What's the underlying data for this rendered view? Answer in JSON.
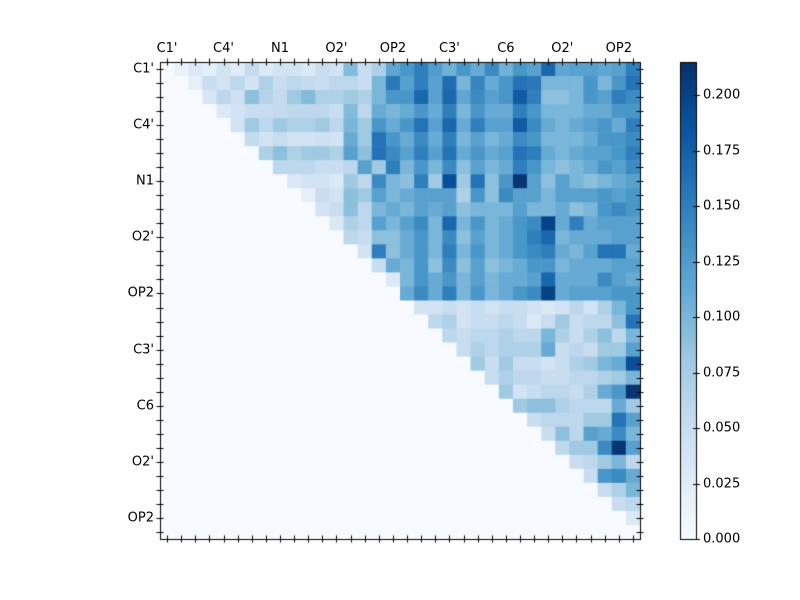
{
  "figure": {
    "background": "#ffffff",
    "title": ""
  },
  "chart_data": {
    "type": "heatmap",
    "description": "Upper-triangular heatmap, Blues colormap; identical tick labels on x (top) and y (left) axes, label every 4th cell",
    "n": 34,
    "x_tick_labels": [
      "C1'",
      "C4'",
      "N1",
      "O2'",
      "OP2",
      "C3'",
      "C6",
      "O2'",
      "OP2"
    ],
    "y_tick_labels": [
      "C1'",
      "C4'",
      "N1",
      "O2'",
      "OP2",
      "C3'",
      "C6",
      "O2'",
      "OP2"
    ],
    "labeled_cells": [
      0,
      4,
      8,
      12,
      16,
      20,
      24,
      28,
      32
    ],
    "vmin": 0.0,
    "vmax": 0.215,
    "colormap": "Blues",
    "colormap_stops": [
      [
        0.0,
        "#f7fbff"
      ],
      [
        0.125,
        "#deebf7"
      ],
      [
        0.25,
        "#c6dbef"
      ],
      [
        0.375,
        "#9ecae1"
      ],
      [
        0.5,
        "#6baed6"
      ],
      [
        0.625,
        "#4292c6"
      ],
      [
        0.75,
        "#2171b5"
      ],
      [
        0.875,
        "#08519c"
      ],
      [
        1.0,
        "#08306b"
      ]
    ],
    "colorbar": {
      "tick_labels": [
        "0.000",
        "0.025",
        "0.050",
        "0.075",
        "0.100",
        "0.125",
        "0.150",
        "0.175",
        "0.200"
      ],
      "tick_values": [
        0.0,
        0.025,
        0.05,
        0.075,
        0.1,
        0.125,
        0.15,
        0.175,
        0.2
      ]
    },
    "values": [
      [
        0,
        0.015,
        0.03,
        0.02,
        0.04,
        0.025,
        0.055,
        0.03,
        0.04,
        0.04,
        0.03,
        0.05,
        0.04,
        0.095,
        0.05,
        0.07,
        0.115,
        0.13,
        0.15,
        0.125,
        0.105,
        0.13,
        0.11,
        0.14,
        0.105,
        0.13,
        0.12,
        0.17,
        0.115,
        0.12,
        0.12,
        0.115,
        0.12,
        0.15
      ],
      [
        0,
        0,
        0.02,
        0.05,
        0.04,
        0.06,
        0.04,
        0.07,
        0.05,
        0.06,
        0.055,
        0.05,
        0.06,
        0.06,
        0.05,
        0.1,
        0.155,
        0.12,
        0.15,
        0.12,
        0.165,
        0.1,
        0.145,
        0.11,
        0.13,
        0.16,
        0.155,
        0.1,
        0.1,
        0.1,
        0.13,
        0.1,
        0.13,
        0.16
      ],
      [
        0,
        0,
        0,
        0.035,
        0.06,
        0.045,
        0.09,
        0.065,
        0.055,
        0.08,
        0.095,
        0.07,
        0.07,
        0.08,
        0.07,
        0.1,
        0.13,
        0.13,
        0.17,
        0.12,
        0.17,
        0.115,
        0.14,
        0.12,
        0.13,
        0.18,
        0.15,
        0.09,
        0.09,
        0.1,
        0.13,
        0.12,
        0.15,
        0.14
      ],
      [
        0,
        0,
        0,
        0,
        0.03,
        0.04,
        0.05,
        0.05,
        0.055,
        0.06,
        0.06,
        0.06,
        0.05,
        0.095,
        0.06,
        0.11,
        0.1,
        0.11,
        0.13,
        0.11,
        0.15,
        0.1,
        0.13,
        0.11,
        0.11,
        0.15,
        0.13,
        0.1,
        0.1,
        0.1,
        0.11,
        0.11,
        0.13,
        0.13
      ],
      [
        0,
        0,
        0,
        0,
        0,
        0.04,
        0.08,
        0.06,
        0.08,
        0.07,
        0.07,
        0.08,
        0.06,
        0.1,
        0.08,
        0.13,
        0.11,
        0.13,
        0.16,
        0.12,
        0.17,
        0.11,
        0.15,
        0.12,
        0.12,
        0.18,
        0.14,
        0.11,
        0.1,
        0.11,
        0.12,
        0.13,
        0.11,
        0.15
      ],
      [
        0,
        0,
        0,
        0,
        0,
        0,
        0.055,
        0.04,
        0.05,
        0.04,
        0.04,
        0.045,
        0.04,
        0.11,
        0.08,
        0.16,
        0.13,
        0.11,
        0.14,
        0.11,
        0.15,
        0.1,
        0.12,
        0.1,
        0.11,
        0.14,
        0.13,
        0.1,
        0.1,
        0.1,
        0.11,
        0.13,
        0.13,
        0.14
      ],
      [
        0,
        0,
        0,
        0,
        0,
        0,
        0,
        0.07,
        0.09,
        0.07,
        0.08,
        0.08,
        0.07,
        0.12,
        0.09,
        0.16,
        0.14,
        0.12,
        0.15,
        0.12,
        0.16,
        0.11,
        0.13,
        0.11,
        0.12,
        0.16,
        0.15,
        0.11,
        0.1,
        0.11,
        0.12,
        0.12,
        0.13,
        0.15
      ],
      [
        0,
        0,
        0,
        0,
        0,
        0,
        0,
        0,
        0.06,
        0.06,
        0.06,
        0.05,
        0.05,
        0.06,
        0.12,
        0.08,
        0.15,
        0.1,
        0.13,
        0.1,
        0.14,
        0.09,
        0.12,
        0.1,
        0.11,
        0.15,
        0.13,
        0.1,
        0.09,
        0.1,
        0.11,
        0.13,
        0.12,
        0.14
      ],
      [
        0,
        0,
        0,
        0,
        0,
        0,
        0,
        0,
        0,
        0.03,
        0.04,
        0.04,
        0.03,
        0.08,
        0.06,
        0.14,
        0.1,
        0.09,
        0.15,
        0.08,
        0.19,
        0.08,
        0.16,
        0.09,
        0.13,
        0.21,
        0.12,
        0.09,
        0.12,
        0.1,
        0.09,
        0.1,
        0.11,
        0.12
      ],
      [
        0,
        0,
        0,
        0,
        0,
        0,
        0,
        0,
        0,
        0,
        0.02,
        0.05,
        0.04,
        0.09,
        0.08,
        0.12,
        0.1,
        0.11,
        0.12,
        0.12,
        0.12,
        0.07,
        0.13,
        0.09,
        0.14,
        0.12,
        0.12,
        0.1,
        0.12,
        0.12,
        0.12,
        0.13,
        0.12,
        0.13
      ],
      [
        0,
        0,
        0,
        0,
        0,
        0,
        0,
        0,
        0,
        0,
        0,
        0.04,
        0.05,
        0.09,
        0.06,
        0.1,
        0.11,
        0.1,
        0.12,
        0.11,
        0.12,
        0.09,
        0.1,
        0.1,
        0.1,
        0.12,
        0.1,
        0.1,
        0.11,
        0.09,
        0.1,
        0.13,
        0.14,
        0.13
      ],
      [
        0,
        0,
        0,
        0,
        0,
        0,
        0,
        0,
        0,
        0,
        0,
        0,
        0.03,
        0.07,
        0.06,
        0.12,
        0.1,
        0.12,
        0.14,
        0.1,
        0.17,
        0.1,
        0.13,
        0.1,
        0.11,
        0.13,
        0.14,
        0.2,
        0.11,
        0.15,
        0.11,
        0.12,
        0.12,
        0.12
      ],
      [
        0,
        0,
        0,
        0,
        0,
        0,
        0,
        0,
        0,
        0,
        0,
        0,
        0,
        0.06,
        0.05,
        0.09,
        0.09,
        0.11,
        0.13,
        0.1,
        0.14,
        0.09,
        0.12,
        0.1,
        0.11,
        0.13,
        0.15,
        0.17,
        0.1,
        0.11,
        0.11,
        0.11,
        0.12,
        0.12
      ],
      [
        0,
        0,
        0,
        0,
        0,
        0,
        0,
        0,
        0,
        0,
        0,
        0,
        0,
        0,
        0.04,
        0.15,
        0.09,
        0.11,
        0.13,
        0.1,
        0.15,
        0.1,
        0.13,
        0.1,
        0.11,
        0.13,
        0.14,
        0.15,
        0.11,
        0.1,
        0.12,
        0.16,
        0.16,
        0.11
      ],
      [
        0,
        0,
        0,
        0,
        0,
        0,
        0,
        0,
        0,
        0,
        0,
        0,
        0,
        0,
        0,
        0.05,
        0.11,
        0.1,
        0.13,
        0.09,
        0.14,
        0.09,
        0.12,
        0.09,
        0.1,
        0.11,
        0.13,
        0.13,
        0.1,
        0.11,
        0.11,
        0.11,
        0.12,
        0.12
      ],
      [
        0,
        0,
        0,
        0,
        0,
        0,
        0,
        0,
        0,
        0,
        0,
        0,
        0,
        0,
        0,
        0,
        0.03,
        0.1,
        0.13,
        0.11,
        0.13,
        0.1,
        0.12,
        0.1,
        0.11,
        0.11,
        0.12,
        0.17,
        0.11,
        0.11,
        0.11,
        0.14,
        0.12,
        0.11
      ],
      [
        0,
        0,
        0,
        0,
        0,
        0,
        0,
        0,
        0,
        0,
        0,
        0,
        0,
        0,
        0,
        0,
        0,
        0.11,
        0.14,
        0.11,
        0.15,
        0.1,
        0.13,
        0.1,
        0.11,
        0.13,
        0.14,
        0.2,
        0.11,
        0.12,
        0.12,
        0.12,
        0.13,
        0.13
      ],
      [
        0,
        0,
        0,
        0,
        0,
        0,
        0,
        0,
        0,
        0,
        0,
        0,
        0,
        0,
        0,
        0,
        0,
        0,
        0.04,
        0.04,
        0.05,
        0.04,
        0.05,
        0.04,
        0.05,
        0.05,
        0.04,
        0.03,
        0.04,
        0.06,
        0.04,
        0.07,
        0.1,
        0.13
      ],
      [
        0,
        0,
        0,
        0,
        0,
        0,
        0,
        0,
        0,
        0,
        0,
        0,
        0,
        0,
        0,
        0,
        0,
        0,
        0,
        0.06,
        0.07,
        0.04,
        0.05,
        0.05,
        0.06,
        0.05,
        0.03,
        0.05,
        0.08,
        0.05,
        0.06,
        0.06,
        0.09,
        0.16
      ],
      [
        0,
        0,
        0,
        0,
        0,
        0,
        0,
        0,
        0,
        0,
        0,
        0,
        0,
        0,
        0,
        0,
        0,
        0,
        0,
        0,
        0.06,
        0.05,
        0.06,
        0.06,
        0.07,
        0.06,
        0.06,
        0.1,
        0.07,
        0.05,
        0.07,
        0.09,
        0.06,
        0.1
      ],
      [
        0,
        0,
        0,
        0,
        0,
        0,
        0,
        0,
        0,
        0,
        0,
        0,
        0,
        0,
        0,
        0,
        0,
        0,
        0,
        0,
        0,
        0.05,
        0.07,
        0.06,
        0.07,
        0.07,
        0.07,
        0.11,
        0.05,
        0.06,
        0.05,
        0.08,
        0.08,
        0.12
      ],
      [
        0,
        0,
        0,
        0,
        0,
        0,
        0,
        0,
        0,
        0,
        0,
        0,
        0,
        0,
        0,
        0,
        0,
        0,
        0,
        0,
        0,
        0,
        0.08,
        0.05,
        0.08,
        0.05,
        0.05,
        0.04,
        0.05,
        0.07,
        0.08,
        0.1,
        0.11,
        0.19
      ],
      [
        0,
        0,
        0,
        0,
        0,
        0,
        0,
        0,
        0,
        0,
        0,
        0,
        0,
        0,
        0,
        0,
        0,
        0,
        0,
        0,
        0,
        0,
        0,
        0.05,
        0.07,
        0.06,
        0.06,
        0.05,
        0.05,
        0.06,
        0.06,
        0.07,
        0.08,
        0.1
      ],
      [
        0,
        0,
        0,
        0,
        0,
        0,
        0,
        0,
        0,
        0,
        0,
        0,
        0,
        0,
        0,
        0,
        0,
        0,
        0,
        0,
        0,
        0,
        0,
        0,
        0.08,
        0.04,
        0.05,
        0.06,
        0.06,
        0.05,
        0.07,
        0.11,
        0.13,
        0.21
      ],
      [
        0,
        0,
        0,
        0,
        0,
        0,
        0,
        0,
        0,
        0,
        0,
        0,
        0,
        0,
        0,
        0,
        0,
        0,
        0,
        0,
        0,
        0,
        0,
        0,
        0,
        0.08,
        0.09,
        0.09,
        0.07,
        0.06,
        0.06,
        0.06,
        0.11,
        0.08
      ],
      [
        0,
        0,
        0,
        0,
        0,
        0,
        0,
        0,
        0,
        0,
        0,
        0,
        0,
        0,
        0,
        0,
        0,
        0,
        0,
        0,
        0,
        0,
        0,
        0,
        0,
        0,
        0.05,
        0.06,
        0.06,
        0.06,
        0.08,
        0.08,
        0.16,
        0.12
      ],
      [
        0,
        0,
        0,
        0,
        0,
        0,
        0,
        0,
        0,
        0,
        0,
        0,
        0,
        0,
        0,
        0,
        0,
        0,
        0,
        0,
        0,
        0,
        0,
        0,
        0,
        0,
        0,
        0.05,
        0.09,
        0.06,
        0.12,
        0.11,
        0.14,
        0.1
      ],
      [
        0,
        0,
        0,
        0,
        0,
        0,
        0,
        0,
        0,
        0,
        0,
        0,
        0,
        0,
        0,
        0,
        0,
        0,
        0,
        0,
        0,
        0,
        0,
        0,
        0,
        0,
        0,
        0,
        0.06,
        0.08,
        0.08,
        0.14,
        0.21,
        0.12
      ],
      [
        0,
        0,
        0,
        0,
        0,
        0,
        0,
        0,
        0,
        0,
        0,
        0,
        0,
        0,
        0,
        0,
        0,
        0,
        0,
        0,
        0,
        0,
        0,
        0,
        0,
        0,
        0,
        0,
        0,
        0.05,
        0.06,
        0.08,
        0.1,
        0.06
      ],
      [
        0,
        0,
        0,
        0,
        0,
        0,
        0,
        0,
        0,
        0,
        0,
        0,
        0,
        0,
        0,
        0,
        0,
        0,
        0,
        0,
        0,
        0,
        0,
        0,
        0,
        0,
        0,
        0,
        0,
        0,
        0.05,
        0.13,
        0.14,
        0.11
      ],
      [
        0,
        0,
        0,
        0,
        0,
        0,
        0,
        0,
        0,
        0,
        0,
        0,
        0,
        0,
        0,
        0,
        0,
        0,
        0,
        0,
        0,
        0,
        0,
        0,
        0,
        0,
        0,
        0,
        0,
        0,
        0,
        0.05,
        0.07,
        0.1
      ],
      [
        0,
        0,
        0,
        0,
        0,
        0,
        0,
        0,
        0,
        0,
        0,
        0,
        0,
        0,
        0,
        0,
        0,
        0,
        0,
        0,
        0,
        0,
        0,
        0,
        0,
        0,
        0,
        0,
        0,
        0,
        0,
        0,
        0.05,
        0.06
      ],
      [
        0,
        0,
        0,
        0,
        0,
        0,
        0,
        0,
        0,
        0,
        0,
        0,
        0,
        0,
        0,
        0,
        0,
        0,
        0,
        0,
        0,
        0,
        0,
        0,
        0,
        0,
        0,
        0,
        0,
        0,
        0,
        0,
        0,
        0.03
      ],
      [
        0,
        0,
        0,
        0,
        0,
        0,
        0,
        0,
        0,
        0,
        0,
        0,
        0,
        0,
        0,
        0,
        0,
        0,
        0,
        0,
        0,
        0,
        0,
        0,
        0,
        0,
        0,
        0,
        0,
        0,
        0,
        0,
        0,
        0
      ]
    ]
  }
}
